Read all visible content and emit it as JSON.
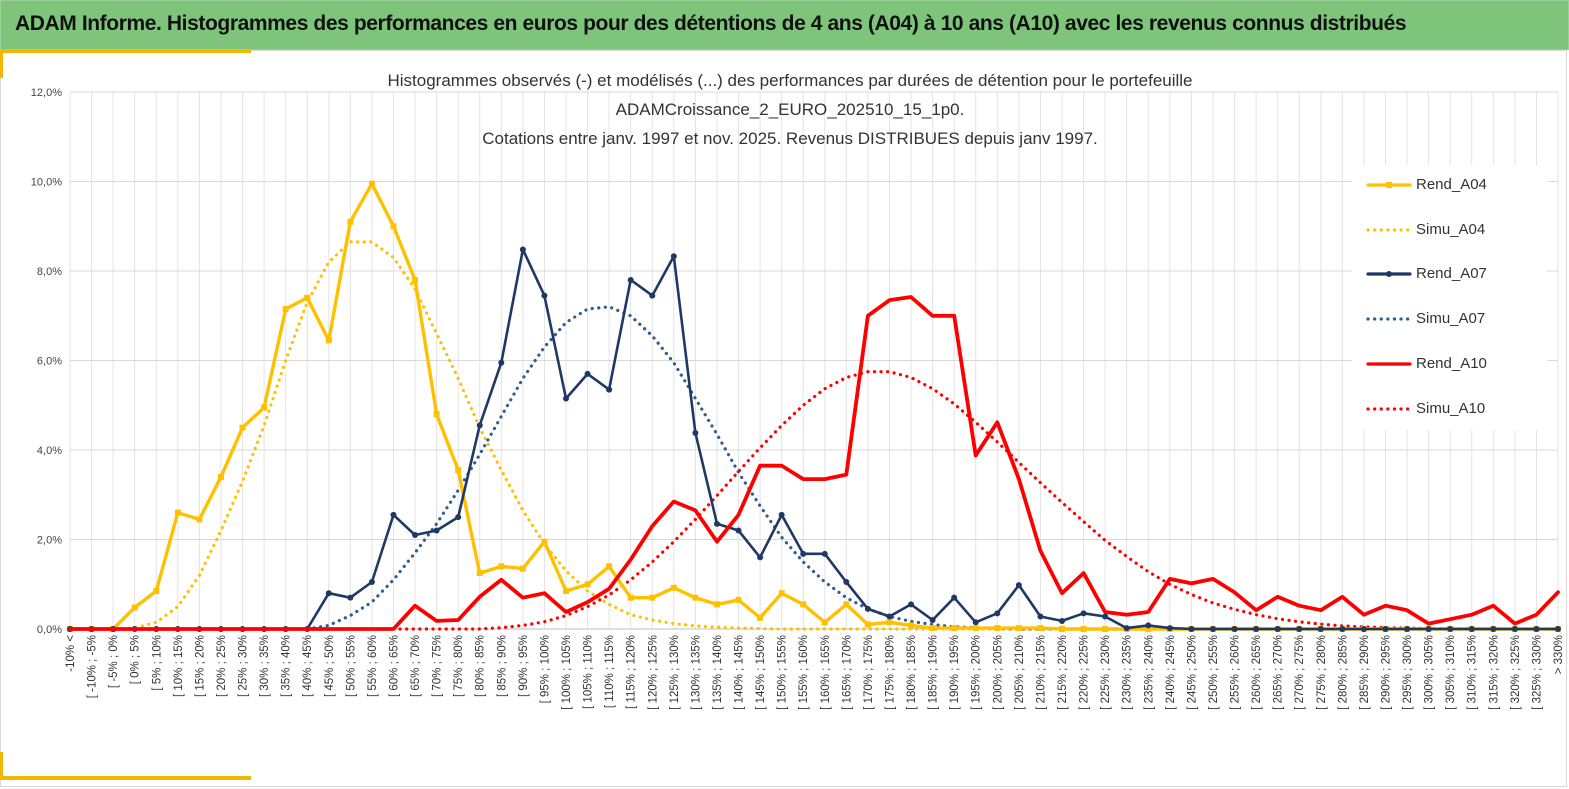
{
  "banner": {
    "title": "ADAM Informe. Histogrammes des performances en euros pour des détentions de 4 ans (A04) à 10 ans (A10) avec les revenus connus distribués"
  },
  "colors": {
    "banner_bg": "#7ec47a",
    "accent": "#f2b700",
    "a04": "#ffc000",
    "a07": "#1f3864",
    "a07_simu": "#2e5e8e",
    "a10": "#ff0000"
  },
  "chart_data": {
    "type": "line",
    "title": [
      "Histogrammes observés (-) et modélisés (...) des performances par durées de détention pour le portefeuille",
      "ADAMCroissance_2_EURO_202510_15_1p0.",
      "Cotations entre janv. 1997 et nov. 2025. Revenus DISTRIBUES depuis janv 1997."
    ],
    "ylim": [
      0,
      0.12
    ],
    "yticks": [
      "0,0%",
      "2,0%",
      "4,0%",
      "6,0%",
      "8,0%",
      "10,0%",
      "12,0%"
    ],
    "grid": true,
    "legend_position": "right",
    "categories": [
      "-10% <",
      "[ -10% ; -5%",
      "[ -5% ; 0%",
      "[ 0% ; 5%",
      "[ 5% ; 10%",
      "[ 10% ; 15%",
      "[ 15% ; 20%",
      "[ 20% ; 25%",
      "[ 25% ; 30%",
      "[ 30% ; 35%",
      "[ 35% ; 40%",
      "[ 40% ; 45%",
      "[ 45% ; 50%",
      "[ 50% ; 55%",
      "[ 55% ; 60%",
      "[ 60% ; 65%",
      "[ 65% ; 70%",
      "[ 70% ; 75%",
      "[ 75% ; 80%",
      "[ 80% ; 85%",
      "[ 85% ; 90%",
      "[ 90% ; 95%",
      "[ 95% ; 100%",
      "[ 100% ; 105%",
      "[ 105% ; 110%",
      "[ 110% ; 115%",
      "[ 115% ; 120%",
      "[ 120% ; 125%",
      "[ 125% ; 130%",
      "[ 130% ; 135%",
      "[ 135% ; 140%",
      "[ 140% ; 145%",
      "[ 145% ; 150%",
      "[ 150% ; 155%",
      "[ 155% ; 160%",
      "[ 160% ; 165%",
      "[ 165% ; 170%",
      "[ 170% ; 175%",
      "[ 175% ; 180%",
      "[ 180% ; 185%",
      "[ 185% ; 190%",
      "[ 190% ; 195%",
      "[ 195% ; 200%",
      "[ 200% ; 205%",
      "[ 205% ; 210%",
      "[ 210% ; 215%",
      "[ 215% ; 220%",
      "[ 220% ; 225%",
      "[ 225% ; 230%",
      "[ 230% ; 235%",
      "[ 235% ; 240%",
      "[ 240% ; 245%",
      "[ 245% ; 250%",
      "[ 250% ; 255%",
      "[ 255% ; 260%",
      "[ 260% ; 265%",
      "[ 265% ; 270%",
      "[ 270% ; 275%",
      "[ 275% ; 280%",
      "[ 280% ; 285%",
      "[ 285% ; 290%",
      "[ 290% ; 295%",
      "[ 295% ; 300%",
      "[ 300% ; 305%",
      "[ 305% ; 310%",
      "[ 310% ; 315%",
      "[ 315% ; 320%",
      "[ 320% ; 325%",
      "[ 325% ; 330%",
      "> 330%"
    ],
    "series": [
      {
        "name": "Rend_A04",
        "style": "solid",
        "marker": "square",
        "color": "#ffc000",
        "values": [
          0,
          0,
          0,
          0.0048,
          0.0085,
          0.026,
          0.0245,
          0.034,
          0.045,
          0.0495,
          0.0715,
          0.074,
          0.0645,
          0.091,
          0.0995,
          0.09,
          0.078,
          0.048,
          0.0355,
          0.0125,
          0.014,
          0.0135,
          0.0195,
          0.0085,
          0.01,
          0.014,
          0.007,
          0.007,
          0.0092,
          0.007,
          0.0055,
          0.0065,
          0.0025,
          0.008,
          0.0055,
          0.0015,
          0.0055,
          0.001,
          0.0015,
          0.0008,
          0.0002,
          0.0002,
          0.0002,
          0.0002,
          0.0002,
          0.0002,
          0,
          0,
          0,
          0,
          0,
          0,
          0,
          0,
          0,
          0,
          0,
          0,
          0,
          0,
          0,
          0,
          0,
          0,
          0,
          0,
          0,
          0,
          0,
          0
        ]
      },
      {
        "name": "Simu_A04",
        "style": "dotted",
        "color": "#ffc000",
        "values": [
          0,
          0,
          0,
          0.0002,
          0.0015,
          0.005,
          0.012,
          0.022,
          0.033,
          0.0455,
          0.06,
          0.073,
          0.082,
          0.0865,
          0.0865,
          0.083,
          0.076,
          0.066,
          0.056,
          0.045,
          0.0355,
          0.0265,
          0.019,
          0.013,
          0.0085,
          0.0055,
          0.0032,
          0.002,
          0.0012,
          0.0007,
          0.0004,
          0.0002,
          0.0001,
          0,
          0,
          0,
          0,
          0,
          0,
          0,
          0,
          0,
          0,
          0,
          0,
          0,
          0,
          0,
          0,
          0,
          0,
          0,
          0,
          0,
          0,
          0,
          0,
          0,
          0,
          0,
          0,
          0,
          0,
          0,
          0,
          0,
          0,
          0,
          0,
          0
        ]
      },
      {
        "name": "Rend_A07",
        "style": "solid",
        "marker": "circle",
        "color": "#1f3864",
        "values": [
          0,
          0,
          0,
          0,
          0,
          0,
          0,
          0,
          0,
          0,
          0,
          0,
          0.008,
          0.007,
          0.0105,
          0.0255,
          0.021,
          0.022,
          0.025,
          0.0455,
          0.0595,
          0.0848,
          0.0745,
          0.0515,
          0.057,
          0.0535,
          0.078,
          0.0745,
          0.0833,
          0.0438,
          0.0235,
          0.022,
          0.016,
          0.0255,
          0.0168,
          0.0168,
          0.0105,
          0.0045,
          0.0028,
          0.0055,
          0.002,
          0.007,
          0.0015,
          0.0035,
          0.0098,
          0.0028,
          0.0018,
          0.0035,
          0.0028,
          0.0002,
          0.0008,
          0.0002,
          0,
          0,
          0,
          0,
          0,
          0,
          0,
          0,
          0,
          0,
          0,
          0,
          0,
          0,
          0,
          0,
          0,
          0
        ]
      },
      {
        "name": "Simu_A07",
        "style": "dotted",
        "color": "#2e5e8e",
        "values": [
          0,
          0,
          0,
          0,
          0,
          0,
          0,
          0,
          0,
          0,
          0,
          0,
          0.0008,
          0.003,
          0.006,
          0.011,
          0.017,
          0.0235,
          0.031,
          0.039,
          0.0475,
          0.056,
          0.063,
          0.0685,
          0.0715,
          0.072,
          0.07,
          0.0655,
          0.0595,
          0.0515,
          0.0435,
          0.035,
          0.0275,
          0.0205,
          0.015,
          0.0105,
          0.007,
          0.0045,
          0.0028,
          0.0017,
          0.001,
          0.0005,
          0.0003,
          0.0001,
          0,
          0,
          0,
          0,
          0,
          0,
          0,
          0,
          0,
          0,
          0,
          0,
          0,
          0,
          0,
          0,
          0,
          0,
          0,
          0,
          0,
          0,
          0,
          0,
          0,
          0
        ]
      },
      {
        "name": "Rend_A10",
        "style": "solid",
        "marker": "none",
        "color": "#ff0000",
        "values": [
          0,
          0,
          0,
          0,
          0,
          0,
          0,
          0,
          0,
          0,
          0,
          0,
          0,
          0,
          0,
          0,
          0.0052,
          0.0018,
          0.002,
          0.0072,
          0.011,
          0.007,
          0.008,
          0.0038,
          0.006,
          0.009,
          0.0155,
          0.023,
          0.0285,
          0.0265,
          0.0195,
          0.0255,
          0.0365,
          0.0365,
          0.0335,
          0.0335,
          0.0345,
          0.07,
          0.0735,
          0.0742,
          0.07,
          0.07,
          0.0388,
          0.0462,
          0.0335,
          0.0175,
          0.008,
          0.0125,
          0.0038,
          0.0032,
          0.0038,
          0.0112,
          0.0102,
          0.0112,
          0.0082,
          0.0042,
          0.0072,
          0.0052,
          0.0042,
          0.0072,
          0.0032,
          0.0052,
          0.0042,
          0.0012,
          0.0022,
          0.0032,
          0.0052,
          0.0012,
          0.0032,
          0.0082
        ]
      },
      {
        "name": "Simu_A10",
        "style": "dotted",
        "color": "#ff0000",
        "values": [
          0,
          0,
          0,
          0,
          0,
          0,
          0,
          0,
          0,
          0,
          0,
          0,
          0,
          0,
          0,
          0,
          0,
          0,
          0,
          0,
          0.0003,
          0.0008,
          0.0016,
          0.003,
          0.005,
          0.0076,
          0.011,
          0.015,
          0.0195,
          0.0245,
          0.0298,
          0.0352,
          0.0405,
          0.0455,
          0.05,
          0.0537,
          0.0562,
          0.0575,
          0.0575,
          0.0562,
          0.0537,
          0.0503,
          0.0462,
          0.0418,
          0.0372,
          0.0327,
          0.0283,
          0.024,
          0.0198,
          0.0162,
          0.0128,
          0.01,
          0.0077,
          0.0058,
          0.0044,
          0.0032,
          0.0023,
          0.0016,
          0.0011,
          0.0007,
          0.0005,
          0.0003,
          0.0002,
          0.0001,
          0.0001,
          0,
          0,
          0,
          0,
          0
        ]
      }
    ]
  }
}
